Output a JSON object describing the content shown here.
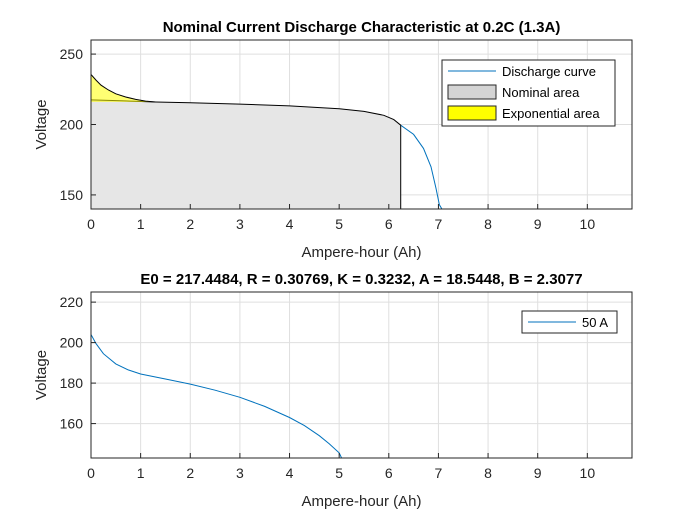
{
  "chart_data": [
    {
      "type": "area",
      "title": "Nominal Current Discharge Characteristic at 0.2C (1.3A)",
      "xlabel": "Ampere-hour (Ah)",
      "ylabel": "Voltage",
      "xlim": [
        0,
        10.9
      ],
      "ylim": [
        140,
        260
      ],
      "xticks": [
        0,
        1,
        2,
        3,
        4,
        5,
        6,
        7,
        8,
        9,
        10
      ],
      "yticks": [
        150,
        200,
        250
      ],
      "grid": true,
      "legend_position": "top-right",
      "series": [
        {
          "name": "Discharge curve",
          "kind": "line",
          "color": "#0072bd",
          "x": [
            6.24,
            6.5,
            6.7,
            6.85,
            6.95,
            7.02,
            7.07
          ],
          "y": [
            199.5,
            193,
            183,
            170,
            155,
            143,
            140
          ]
        },
        {
          "name": "Nominal area",
          "kind": "fill",
          "color": "#e6e6e6",
          "x": [
            0,
            0.6,
            1.3,
            2,
            3,
            4,
            5,
            5.5,
            5.9,
            6.1,
            6.24
          ],
          "y": [
            217.5,
            216.8,
            216.0,
            215.4,
            214.5,
            213.2,
            211.2,
            209.3,
            206.5,
            203.5,
            199.5
          ]
        },
        {
          "name": "Exponential area",
          "kind": "fill",
          "color": "#ffff00",
          "x": [
            0,
            0.1,
            0.2,
            0.35,
            0.5,
            0.7,
            0.9,
            1.1,
            1.3
          ],
          "y": [
            235.5,
            231.5,
            228.0,
            224.5,
            221.8,
            219.5,
            217.8,
            216.6,
            216.0
          ]
        }
      ]
    },
    {
      "type": "line",
      "title": "E0 = 217.4484, R = 0.30769, K = 0.3232, A = 18.5448, B = 2.3077",
      "xlabel": "Ampere-hour (Ah)",
      "ylabel": "Voltage",
      "xlim": [
        0,
        10.9
      ],
      "ylim": [
        143,
        225
      ],
      "xticks": [
        0,
        1,
        2,
        3,
        4,
        5,
        6,
        7,
        8,
        9,
        10
      ],
      "yticks": [
        160,
        180,
        200,
        220
      ],
      "grid": true,
      "legend_position": "top-right",
      "series": [
        {
          "name": "50 A",
          "color": "#0072bd",
          "x": [
            0,
            0.1,
            0.25,
            0.5,
            0.75,
            1,
            1.5,
            2,
            2.5,
            3,
            3.5,
            4,
            4.3,
            4.6,
            4.8,
            5.0,
            5.05
          ],
          "y": [
            204,
            199.5,
            194.5,
            189.5,
            186.5,
            184.5,
            182,
            179.5,
            176.5,
            173,
            168.5,
            163,
            159,
            154,
            150,
            145.5,
            143
          ]
        }
      ]
    }
  ]
}
